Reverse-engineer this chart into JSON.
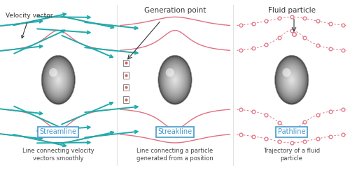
{
  "fig_width": 5.0,
  "fig_height": 2.44,
  "dpi": 100,
  "bg_color": "#ffffff",
  "line_color": "#e07080",
  "arrow_color": "#20aaaa",
  "dot_color": "#e07080",
  "label_color": "#4499cc",
  "text_color": "#444444",
  "panel_titles": [
    "",
    "Generation point",
    "Fluid particle"
  ],
  "label_texts": [
    "Streamline",
    "Streakline",
    "Pathline"
  ],
  "desc_texts": [
    "Line connecting velocity\nvectors smoothly",
    "Line connecting a particle\ngenerated from a position",
    "Trajectory of a fluid\nparticle"
  ]
}
